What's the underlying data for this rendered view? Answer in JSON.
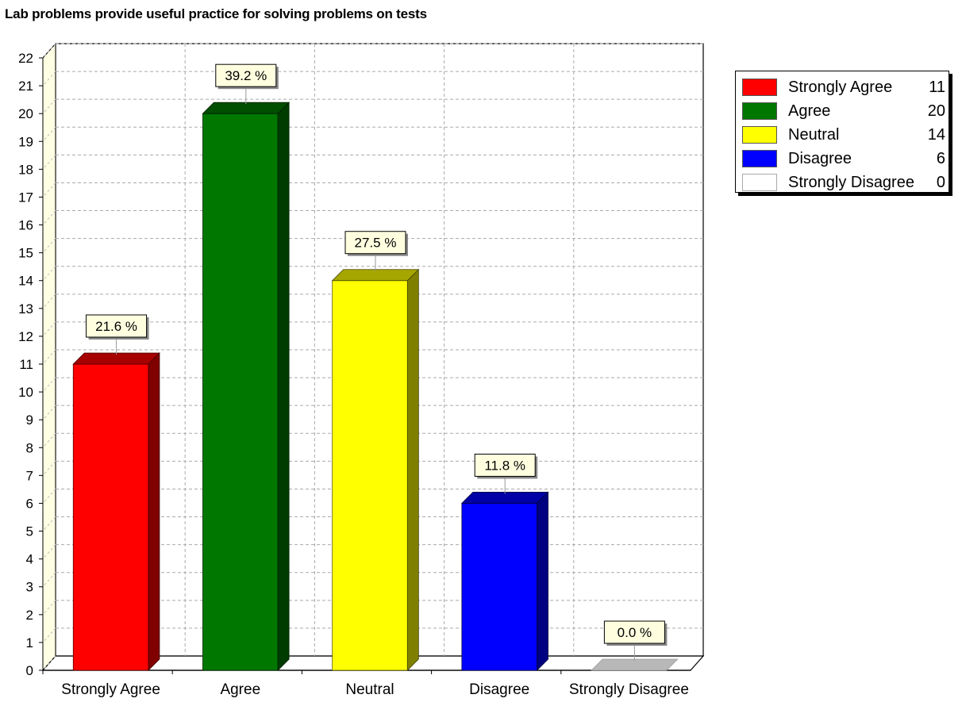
{
  "chart_data": {
    "type": "bar",
    "title": "Lab problems provide useful practice for solving problems on tests",
    "categories": [
      "Strongly Agree",
      "Agree",
      "Neutral",
      "Disagree",
      "Strongly Disagree"
    ],
    "values": [
      11,
      20,
      14,
      6,
      0
    ],
    "data_labels": [
      "21.6 %",
      "39.2 %",
      "27.5 %",
      "11.8 %",
      "0.0 %"
    ],
    "colors": [
      "#ff0000",
      "#007800",
      "#ffff00",
      "#0000ff",
      "#ffffff"
    ],
    "ylim": [
      0,
      22
    ],
    "yticks": [
      0,
      1,
      2,
      3,
      4,
      5,
      6,
      7,
      8,
      9,
      10,
      11,
      12,
      13,
      14,
      15,
      16,
      17,
      18,
      19,
      20,
      21,
      22
    ],
    "grid": true,
    "style": "3d",
    "legend_position": "right",
    "legend": [
      {
        "label": "Strongly Agree",
        "value": "11",
        "color": "#ff0000"
      },
      {
        "label": "Agree",
        "value": "20",
        "color": "#007800"
      },
      {
        "label": "Neutral",
        "value": "14",
        "color": "#ffff00"
      },
      {
        "label": "Disagree",
        "value": "6",
        "color": "#0000ff"
      },
      {
        "label": "Strongly Disagree",
        "value": "0",
        "color": "#ffffff"
      }
    ]
  }
}
